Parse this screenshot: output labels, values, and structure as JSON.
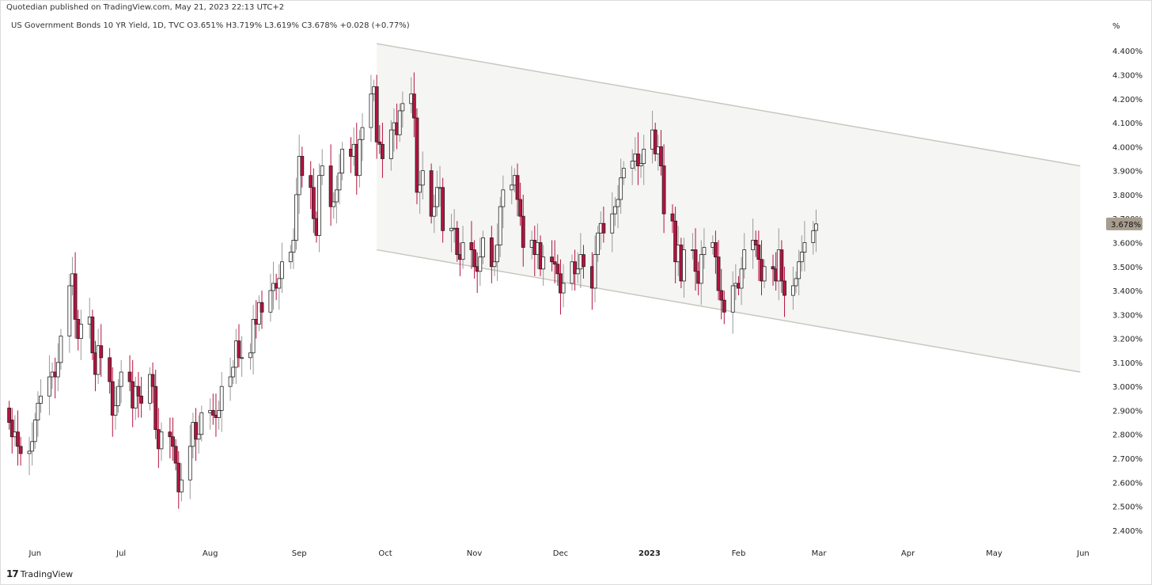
{
  "header": {
    "publisher": "Quotedian published on TradingView.com, May 21, 2023 22:13 UTC+2",
    "symbol_line": "US Government Bonds 10 YR Yield, 1D, TVC  O3.651%  H3.719%  L3.619%  C3.678%  +0.028 (+0.77%)"
  },
  "brand": {
    "logo": "17",
    "name": "TradingView"
  },
  "colors": {
    "up_fill": "#ffffff",
    "up_stroke": "#222222",
    "down_fill": "#b7123f",
    "down_stroke": "#222222",
    "down_wick": "#b7123f",
    "channel_fill": "#f5f5f3",
    "channel_line": "#c8c8c0",
    "last_price_bg": "#a89c8f"
  },
  "chart_data": {
    "type": "candlestick",
    "title": "",
    "unit_label": "%",
    "ylim": [
      2.35,
      4.48
    ],
    "y_ticks": [
      "4.400%",
      "4.300%",
      "4.200%",
      "4.100%",
      "4.000%",
      "3.900%",
      "3.800%",
      "3.700%",
      "3.600%",
      "3.500%",
      "3.400%",
      "3.300%",
      "3.200%",
      "3.100%",
      "3.000%",
      "2.900%",
      "2.800%",
      "2.700%",
      "2.600%",
      "2.500%",
      "2.400%"
    ],
    "x_ticks": [
      {
        "label": "Jun",
        "date": "2022-06-01",
        "bold": false
      },
      {
        "label": "Jul",
        "date": "2022-07-01",
        "bold": false
      },
      {
        "label": "Aug",
        "date": "2022-08-01",
        "bold": false
      },
      {
        "label": "Sep",
        "date": "2022-09-01",
        "bold": false
      },
      {
        "label": "Oct",
        "date": "2022-10-01",
        "bold": false
      },
      {
        "label": "Nov",
        "date": "2022-11-01",
        "bold": false
      },
      {
        "label": "Dec",
        "date": "2022-12-01",
        "bold": false
      },
      {
        "label": "2023",
        "date": "2023-01-01",
        "bold": true
      },
      {
        "label": "Feb",
        "date": "2023-02-01",
        "bold": false
      },
      {
        "label": "Mar",
        "date": "2023-03-01",
        "bold": false
      },
      {
        "label": "Apr",
        "date": "2023-04-01",
        "bold": false
      },
      {
        "label": "May",
        "date": "2023-05-01",
        "bold": false
      },
      {
        "label": "Jun",
        "date": "2023-06-01",
        "bold": false
      }
    ],
    "last_price": "3.678%",
    "channel": {
      "upper": [
        {
          "date": "2022-09-28",
          "value": 4.43
        },
        {
          "date": "2023-05-31",
          "value": 3.92
        }
      ],
      "lower": [
        {
          "date": "2022-09-28",
          "value": 3.57
        },
        {
          "date": "2023-05-31",
          "value": 3.06
        }
      ]
    },
    "closes": [
      2.85,
      2.79,
      2.81,
      2.75,
      2.72,
      2.73,
      2.77,
      2.86,
      2.93,
      2.96,
      3.04,
      3.06,
      3.04,
      3.1,
      3.21,
      3.42,
      3.47,
      3.28,
      3.2,
      3.26,
      3.29,
      3.14,
      3.05,
      3.17,
      3.12,
      3.02,
      2.88,
      2.92,
      3.0,
      3.06,
      3.02,
      2.91,
      3.0,
      2.96,
      2.93,
      3.05,
      3.0,
      2.82,
      2.74,
      2.81,
      2.79,
      2.75,
      2.68,
      2.56,
      2.61,
      2.75,
      2.85,
      2.78,
      2.8,
      2.89,
      2.9,
      2.88,
      2.87,
      2.9,
      3.0,
      3.04,
      3.08,
      3.19,
      3.12,
      3.12,
      3.14,
      3.28,
      3.26,
      3.35,
      3.31,
      3.4,
      3.43,
      3.41,
      3.45,
      3.52,
      3.56,
      3.61,
      3.8,
      3.96,
      3.88,
      3.83,
      3.7,
      3.63,
      3.88,
      3.92,
      3.75,
      3.77,
      3.82,
      3.89,
      3.99,
      3.96,
      4.01,
      3.88,
      4.03,
      4.08,
      4.22,
      4.25,
      4.02,
      4.01,
      3.95,
      4.07,
      4.1,
      4.05,
      4.15,
      4.18,
      4.22,
      4.12,
      3.81,
      3.84,
      3.9,
      3.71,
      3.75,
      3.83,
      3.83,
      3.65,
      3.66,
      3.66,
      3.55,
      3.53,
      3.6,
      3.57,
      3.5,
      3.48,
      3.54,
      3.62,
      3.5,
      3.52,
      3.59,
      3.75,
      3.82,
      3.84,
      3.88,
      3.78,
      3.71,
      3.58,
      3.61,
      3.55,
      3.6,
      3.49,
      3.54,
      3.52,
      3.51,
      3.47,
      3.39,
      3.43,
      3.52,
      3.47,
      3.49,
      3.55,
      3.5,
      3.41,
      3.55,
      3.64,
      3.68,
      3.64,
      3.72,
      3.75,
      3.78,
      3.87,
      3.91,
      3.94,
      3.97,
      3.92,
      3.93,
      3.99,
      4.07,
      3.97,
      4.0,
      3.92,
      3.72,
      3.69,
      3.52,
      3.59,
      3.44,
      3.57,
      3.57,
      3.48,
      3.43,
      3.55,
      3.58,
      3.6,
      3.54,
      3.4,
      3.36,
      3.31,
      3.42,
      3.43,
      3.41,
      3.49,
      3.57,
      3.61,
      3.59,
      3.53,
      3.44,
      3.5,
      3.49,
      3.44,
      3.57,
      3.44,
      3.38,
      3.42,
      3.45,
      3.52,
      3.56,
      3.6,
      3.65,
      3.678
    ],
    "opens": [
      2.91,
      2.86,
      2.79,
      2.81,
      2.75,
      2.72,
      2.73,
      2.77,
      2.86,
      2.93,
      2.96,
      3.04,
      3.06,
      3.04,
      3.1,
      3.21,
      3.42,
      3.47,
      3.28,
      3.2,
      3.26,
      3.29,
      3.14,
      3.05,
      3.17,
      3.12,
      3.02,
      2.88,
      2.92,
      3.0,
      3.06,
      3.02,
      2.91,
      3.0,
      2.96,
      2.93,
      3.05,
      3.0,
      2.82,
      2.74,
      2.81,
      2.79,
      2.75,
      2.68,
      2.56,
      2.61,
      2.75,
      2.85,
      2.78,
      2.8,
      2.89,
      2.9,
      2.88,
      2.87,
      2.9,
      3.0,
      3.04,
      3.08,
      3.19,
      3.12,
      3.12,
      3.14,
      3.28,
      3.26,
      3.35,
      3.31,
      3.4,
      3.43,
      3.41,
      3.45,
      3.52,
      3.56,
      3.61,
      3.8,
      3.96,
      3.88,
      3.83,
      3.7,
      3.63,
      3.88,
      3.92,
      3.75,
      3.77,
      3.82,
      3.89,
      3.99,
      3.96,
      4.01,
      3.88,
      4.03,
      4.08,
      4.22,
      4.25,
      4.02,
      4.01,
      3.95,
      4.07,
      4.1,
      4.05,
      4.15,
      4.18,
      4.22,
      4.12,
      3.81,
      3.84,
      3.9,
      3.71,
      3.75,
      3.83,
      3.83,
      3.65,
      3.66,
      3.66,
      3.55,
      3.53,
      3.6,
      3.57,
      3.5,
      3.48,
      3.54,
      3.62,
      3.5,
      3.52,
      3.59,
      3.75,
      3.82,
      3.84,
      3.88,
      3.78,
      3.71,
      3.58,
      3.61,
      3.55,
      3.6,
      3.49,
      3.54,
      3.52,
      3.51,
      3.47,
      3.39,
      3.43,
      3.52,
      3.47,
      3.49,
      3.55,
      3.5,
      3.41,
      3.55,
      3.64,
      3.68,
      3.64,
      3.72,
      3.75,
      3.78,
      3.87,
      3.91,
      3.94,
      3.97,
      3.92,
      3.93,
      3.99,
      4.07,
      3.97,
      4.0,
      3.92,
      3.72,
      3.69,
      3.52,
      3.59,
      3.44,
      3.57,
      3.57,
      3.48,
      3.43,
      3.55,
      3.58,
      3.6,
      3.54,
      3.4,
      3.36,
      3.31,
      3.42,
      3.43,
      3.41,
      3.49,
      3.57,
      3.61,
      3.59,
      3.53,
      3.44,
      3.5,
      3.49,
      3.44,
      3.57,
      3.44,
      3.38,
      3.42,
      3.45,
      3.52,
      3.56,
      3.6,
      3.651
    ]
  }
}
